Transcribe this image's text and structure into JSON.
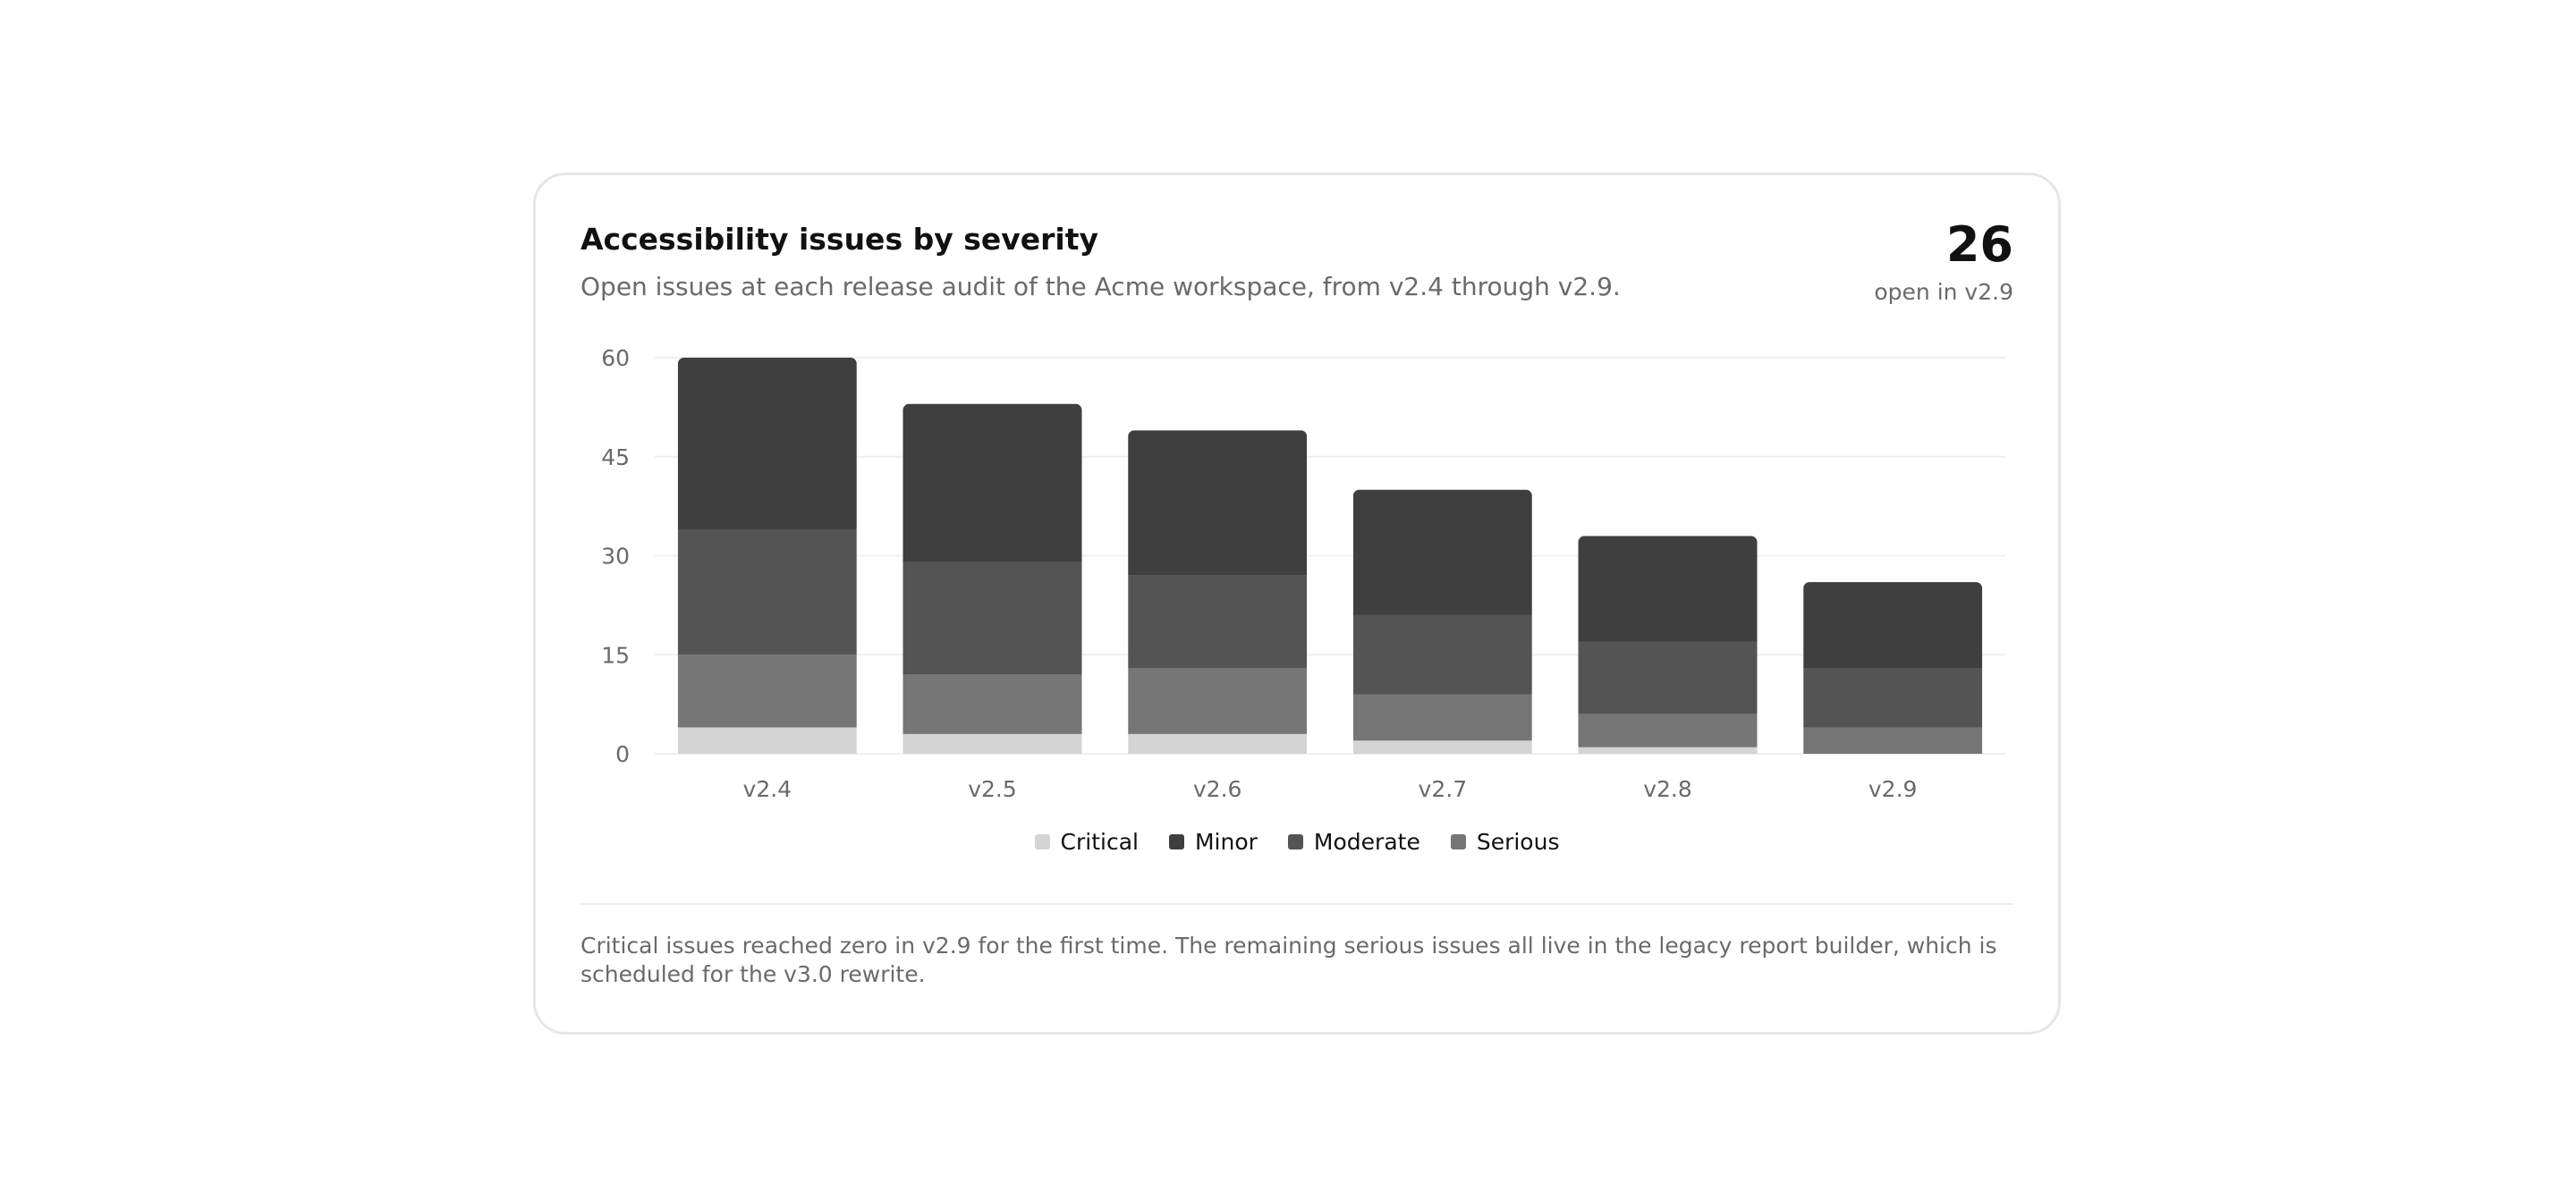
{
  "card": {
    "title": "Accessibility issues by severity",
    "subtitle": "Open issues at each release audit of the Acme workspace, from v2.4 through v2.9.",
    "kpi_value": "26",
    "kpi_label": "open in v2.9",
    "footnote": "Critical issues reached zero in v2.9 for the first time. The remaining serious issues all live in the legacy report builder, which is scheduled for the v3.0 rewrite."
  },
  "chart_data": {
    "type": "bar",
    "stacked": true,
    "title": "Accessibility issues by severity",
    "xlabel": "",
    "ylabel": "",
    "ylim": [
      0,
      60
    ],
    "yticks": [
      0,
      15,
      30,
      45,
      60
    ],
    "grid": true,
    "legend_position": "bottom",
    "categories": [
      "v2.4",
      "v2.5",
      "v2.6",
      "v2.7",
      "v2.8",
      "v2.9"
    ],
    "series": [
      {
        "name": "Critical",
        "color": "#d4d4d4",
        "values": [
          4,
          3,
          3,
          2,
          1,
          0
        ]
      },
      {
        "name": "Serious",
        "color": "#767676",
        "values": [
          11,
          9,
          10,
          7,
          5,
          4
        ]
      },
      {
        "name": "Moderate",
        "color": "#545454",
        "values": [
          19,
          17,
          14,
          12,
          11,
          9
        ]
      },
      {
        "name": "Minor",
        "color": "#3f3f3f",
        "values": [
          26,
          24,
          22,
          19,
          16,
          13
        ]
      }
    ]
  },
  "legend": [
    {
      "label": "Critical",
      "color": "#d4d4d4"
    },
    {
      "label": "Minor",
      "color": "#3f3f3f"
    },
    {
      "label": "Moderate",
      "color": "#545454"
    },
    {
      "label": "Serious",
      "color": "#767676"
    }
  ]
}
